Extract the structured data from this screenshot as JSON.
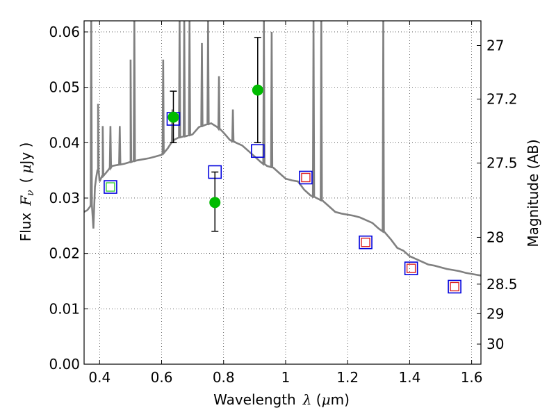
{
  "chart_data": {
    "type": "scatter",
    "x_axis": {
      "label_text": "Wavelength",
      "label_symbol": "λ",
      "label_unit_open": " (",
      "label_unit_mu": "μ",
      "label_unit_rest": "m)",
      "range": [
        0.35,
        1.63
      ],
      "ticks": [
        0.4,
        0.6,
        0.8,
        1.0,
        1.2,
        1.4,
        1.6
      ],
      "tick_labels": [
        "0.4",
        "0.6",
        "0.8",
        "1",
        "1.2",
        "1.4",
        "1.6"
      ]
    },
    "y_axis_left": {
      "label_text": "Flux",
      "label_symbol": "F",
      "label_subscript": "ν",
      "label_unit_open": "(",
      "label_unit_mu": "μ",
      "label_unit_rest": "Jy )",
      "range": [
        0.0,
        0.062
      ],
      "ticks": [
        0.0,
        0.01,
        0.02,
        0.03,
        0.04,
        0.05,
        0.06
      ],
      "tick_labels": [
        "0.00",
        "0.01",
        "0.02",
        "0.03",
        "0.04",
        "0.05",
        "0.06"
      ]
    },
    "y_axis_right": {
      "label": "Magnitude (AB)",
      "ticks": [
        27,
        27.2,
        27.5,
        28,
        28.5,
        29,
        30
      ],
      "tick_labels": [
        "27",
        "27.2",
        "27.5",
        "28",
        "28.5",
        "29",
        "30"
      ]
    },
    "grid": true,
    "colors": {
      "sed": "#808080",
      "observed": "#00bb00",
      "model_box": "#0000dd",
      "inner_green": "#33cc33",
      "inner_red": "#dd2222",
      "errorbar": "#000000"
    },
    "sed_line": {
      "x": [
        0.35,
        0.36,
        0.37,
        0.375,
        0.38,
        0.385,
        0.39,
        0.395,
        0.4,
        0.41,
        0.42,
        0.43,
        0.44,
        0.46,
        0.48,
        0.5,
        0.52,
        0.54,
        0.56,
        0.58,
        0.6,
        0.62,
        0.64,
        0.66,
        0.68,
        0.7,
        0.72,
        0.74,
        0.76,
        0.78,
        0.8,
        0.82,
        0.84,
        0.86,
        0.88,
        0.9,
        0.92,
        0.94,
        0.96,
        0.98,
        1.0,
        1.02,
        1.04,
        1.06,
        1.08,
        1.1,
        1.12,
        1.14,
        1.16,
        1.18,
        1.2,
        1.22,
        1.24,
        1.26,
        1.28,
        1.3,
        1.32,
        1.34,
        1.36,
        1.38,
        1.4,
        1.42,
        1.44,
        1.46,
        1.48,
        1.5,
        1.52,
        1.54,
        1.56,
        1.58,
        1.6,
        1.63
      ],
      "y": [
        0.0275,
        0.0278,
        0.0285,
        0.029,
        0.0245,
        0.032,
        0.034,
        0.035,
        0.033,
        0.034,
        0.0345,
        0.0352,
        0.0358,
        0.036,
        0.0362,
        0.0365,
        0.0368,
        0.037,
        0.0372,
        0.0375,
        0.0378,
        0.039,
        0.0405,
        0.041,
        0.0412,
        0.0415,
        0.0428,
        0.0432,
        0.0435,
        0.0428,
        0.0418,
        0.0405,
        0.04,
        0.0395,
        0.0385,
        0.0375,
        0.0365,
        0.0358,
        0.0355,
        0.0345,
        0.0335,
        0.0332,
        0.033,
        0.0315,
        0.0305,
        0.03,
        0.0295,
        0.0285,
        0.0275,
        0.0272,
        0.027,
        0.0268,
        0.0265,
        0.026,
        0.0255,
        0.0245,
        0.0238,
        0.0225,
        0.021,
        0.0205,
        0.0195,
        0.019,
        0.0185,
        0.018,
        0.0178,
        0.0175,
        0.0172,
        0.017,
        0.0168,
        0.0165,
        0.0163,
        0.016
      ]
    },
    "emission_spikes": [
      {
        "x": 0.373,
        "peak": 0.062
      },
      {
        "x": 0.395,
        "peak": 0.047
      },
      {
        "x": 0.41,
        "peak": 0.043
      },
      {
        "x": 0.435,
        "peak": 0.043
      },
      {
        "x": 0.465,
        "peak": 0.043
      },
      {
        "x": 0.5,
        "peak": 0.055
      },
      {
        "x": 0.512,
        "peak": 0.062
      },
      {
        "x": 0.605,
        "peak": 0.055
      },
      {
        "x": 0.635,
        "peak": 0.046
      },
      {
        "x": 0.658,
        "peak": 0.062
      },
      {
        "x": 0.673,
        "peak": 0.062
      },
      {
        "x": 0.69,
        "peak": 0.062
      },
      {
        "x": 0.73,
        "peak": 0.058
      },
      {
        "x": 0.75,
        "peak": 0.062
      },
      {
        "x": 0.785,
        "peak": 0.052
      },
      {
        "x": 0.83,
        "peak": 0.046
      },
      {
        "x": 0.93,
        "peak": 0.062
      },
      {
        "x": 0.955,
        "peak": 0.06
      },
      {
        "x": 1.09,
        "peak": 0.062
      },
      {
        "x": 1.115,
        "peak": 0.062
      },
      {
        "x": 1.315,
        "peak": 0.062
      }
    ],
    "observed_points": [
      {
        "x": 0.638,
        "y": 0.0446,
        "yerr_low": 0.04,
        "yerr_high": 0.0493
      },
      {
        "x": 0.772,
        "y": 0.0292,
        "yerr_low": 0.024,
        "yerr_high": 0.0347
      },
      {
        "x": 0.91,
        "y": 0.0495,
        "yerr_low": 0.04,
        "yerr_high": 0.059
      }
    ],
    "model_points": [
      {
        "x": 0.435,
        "y": 0.032,
        "inner": "green"
      },
      {
        "x": 0.638,
        "y": 0.0443,
        "inner": "none"
      },
      {
        "x": 0.772,
        "y": 0.0347,
        "inner": "none"
      },
      {
        "x": 0.91,
        "y": 0.0385,
        "inner": "none"
      },
      {
        "x": 1.065,
        "y": 0.0337,
        "inner": "red"
      },
      {
        "x": 1.258,
        "y": 0.022,
        "inner": "red"
      },
      {
        "x": 1.405,
        "y": 0.0173,
        "inner": "red"
      },
      {
        "x": 1.545,
        "y": 0.014,
        "inner": "red"
      }
    ]
  }
}
